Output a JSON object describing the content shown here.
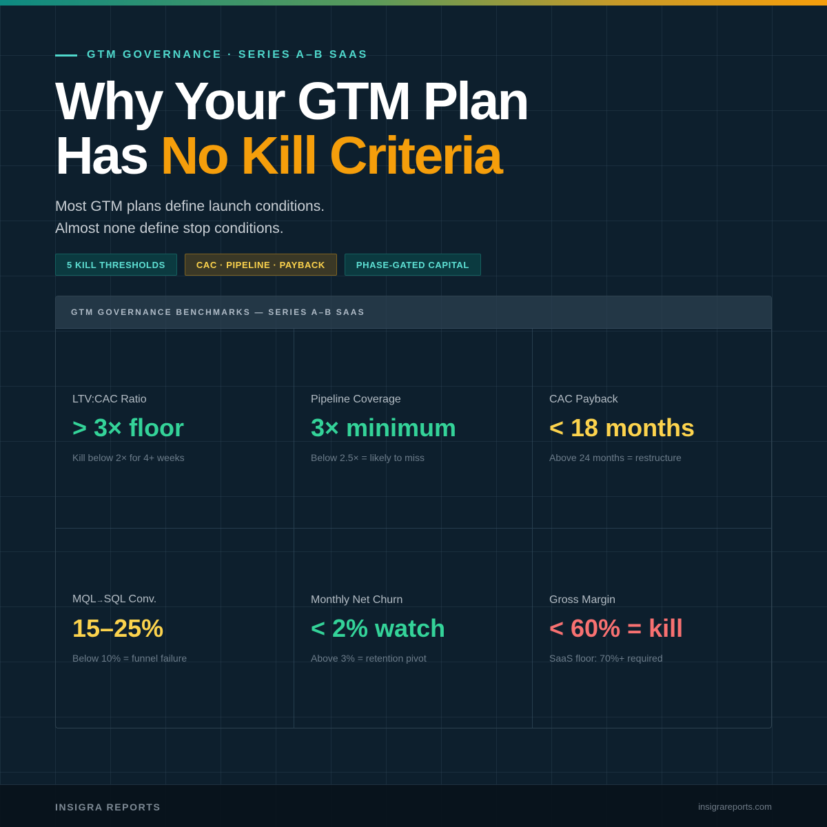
{
  "colors": {
    "background": "#0d1f2d",
    "accent_teal": "#4fd8cc",
    "accent_orange": "#f59e0b",
    "value_green": "#34d399",
    "value_amber": "#fcd34d",
    "value_red": "#f87171"
  },
  "eyebrow": {
    "text": "GTM GOVERNANCE · SERIES A–B SAAS"
  },
  "headline": {
    "line1": "Why Your GTM Plan",
    "line2_prefix": "Has ",
    "line2_accent": "No Kill Criteria"
  },
  "subtitle": {
    "line1": "Most GTM plans define launch conditions.",
    "line2": "Almost none define stop conditions."
  },
  "tags": [
    {
      "label": "5 KILL THRESHOLDS",
      "style": "teal"
    },
    {
      "label": "CAC · PIPELINE · PAYBACK",
      "style": "amber"
    },
    {
      "label": "PHASE-GATED CAPITAL",
      "style": "teal"
    }
  ],
  "panel": {
    "title": "GTM GOVERNANCE BENCHMARKS — SERIES A–B SAAS",
    "metrics": [
      {
        "label": "LTV:CAC Ratio",
        "value": "> 3× floor",
        "note": "Kill below 2× for 4+ weeks",
        "tone": "green"
      },
      {
        "label": "Pipeline Coverage",
        "value": "3× minimum",
        "note": "Below 2.5× = likely to miss",
        "tone": "green"
      },
      {
        "label": "CAC Payback",
        "value": "< 18 months",
        "note": "Above 24 months = restructure",
        "tone": "amber"
      },
      {
        "label_prefix": "MQL",
        "label_arrow": "→",
        "label_suffix": "SQL Conv.",
        "value": "15–25%",
        "note": "Below 10% = funnel failure",
        "tone": "amber"
      },
      {
        "label": "Monthly Net Churn",
        "value": "< 2% watch",
        "note": "Above 3% = retention pivot",
        "tone": "green"
      },
      {
        "label": "Gross Margin",
        "value": "< 60% = kill",
        "note": "SaaS floor: 70%+ required",
        "tone": "red"
      }
    ]
  },
  "footer": {
    "brand": "INSIGRA REPORTS",
    "url": "insigrareports.com"
  }
}
